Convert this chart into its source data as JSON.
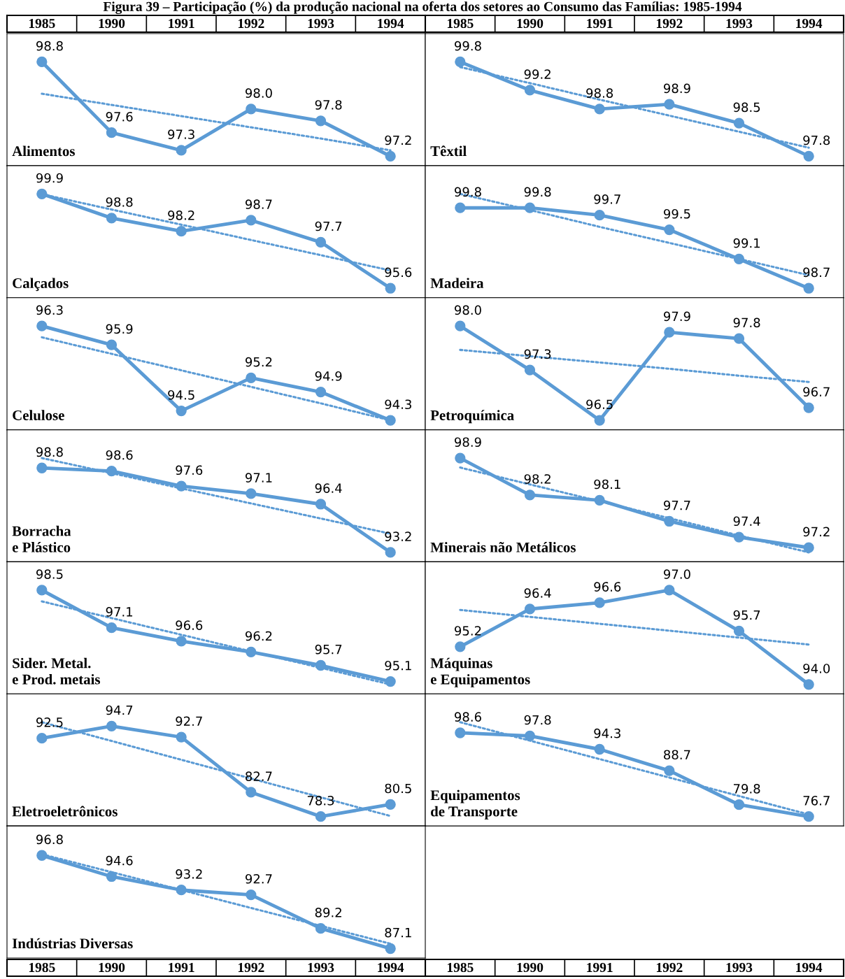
{
  "chart_data": [
    {
      "type": "line",
      "title": "Alimentos",
      "annotations": [
        "Figura 39 – Participação (%) da produção nacional na oferta dos setores ao Consumo das Famílias: 1985-1994"
      ],
      "categories": [
        "1985",
        "1990",
        "1991",
        "1992",
        "1993",
        "1994"
      ],
      "tick_labels": "x",
      "marker": "circle",
      "series": [
        {
          "color": "#5b9bd5",
          "values": [
            98.8,
            97.6,
            97.3,
            98.0,
            97.8,
            97.2
          ],
          "value_labels": [
            "98.8",
            "97.6",
            "97.3",
            "98.0",
            "97.8",
            "97.2"
          ]
        },
        {
          "type": "line",
          "color": "#5b9bd5",
          "line_style": "dotted",
          "marker": "none",
          "values": [
            98.26,
            98.07,
            97.88,
            97.69,
            97.5,
            97.3
          ]
        }
      ]
    },
    {
      "type": "line",
      "title": "Têxtil",
      "categories": [
        "1985",
        "1990",
        "1991",
        "1992",
        "1993",
        "1994"
      ],
      "tick_labels": "x",
      "marker": "circle",
      "series": [
        {
          "color": "#5b9bd5",
          "values": [
            99.8,
            99.2,
            98.8,
            98.9,
            98.5,
            97.8
          ],
          "value_labels": [
            "99.8",
            "99.2",
            "98.8",
            "98.9",
            "98.5",
            "97.8"
          ]
        },
        {
          "type": "line",
          "color": "#5b9bd5",
          "line_style": "dotted",
          "marker": "none",
          "values": [
            99.69,
            99.35,
            99.0,
            98.66,
            98.32,
            97.98
          ]
        }
      ]
    },
    {
      "type": "line",
      "title": "Calçados",
      "categories": [
        "1985",
        "1990",
        "1991",
        "1992",
        "1993",
        "1994"
      ],
      "tick_labels": false,
      "marker": "circle",
      "series": [
        {
          "color": "#5b9bd5",
          "values": [
            99.9,
            98.8,
            98.2,
            98.7,
            97.7,
            95.6
          ],
          "value_labels": [
            "99.9",
            "98.8",
            "98.2",
            "98.7",
            "97.7",
            "95.6"
          ]
        },
        {
          "type": "line",
          "color": "#5b9bd5",
          "line_style": "dotted",
          "marker": "none",
          "values": [
            99.89,
            99.19,
            98.5,
            97.8,
            97.11,
            96.41
          ]
        }
      ]
    },
    {
      "type": "line",
      "title": "Madeira",
      "categories": [
        "1985",
        "1990",
        "1991",
        "1992",
        "1993",
        "1994"
      ],
      "tick_labels": false,
      "marker": "circle",
      "series": [
        {
          "color": "#5b9bd5",
          "values": [
            99.8,
            99.8,
            99.7,
            99.5,
            99.1,
            98.7
          ],
          "value_labels": [
            "99.8",
            "99.8",
            "99.7",
            "99.5",
            "99.1",
            "98.7"
          ]
        },
        {
          "type": "line",
          "color": "#5b9bd5",
          "line_style": "dotted",
          "marker": "none",
          "values": [
            99.99,
            99.77,
            99.54,
            99.32,
            99.1,
            98.88
          ]
        }
      ]
    },
    {
      "type": "line",
      "title": "Celulose",
      "categories": [
        "1985",
        "1990",
        "1991",
        "1992",
        "1993",
        "1994"
      ],
      "tick_labels": false,
      "marker": "circle",
      "series": [
        {
          "color": "#5b9bd5",
          "values": [
            96.3,
            95.9,
            94.5,
            95.2,
            94.9,
            94.3
          ],
          "value_labels": [
            "96.3",
            "95.9",
            "94.5",
            "95.2",
            "94.9",
            "94.3"
          ]
        },
        {
          "type": "line",
          "color": "#5b9bd5",
          "line_style": "dotted",
          "marker": "none",
          "values": [
            96.06,
            95.71,
            95.36,
            95.01,
            94.66,
            94.3
          ]
        }
      ]
    },
    {
      "type": "line",
      "title": "Petroquímica",
      "categories": [
        "1985",
        "1990",
        "1991",
        "1992",
        "1993",
        "1994"
      ],
      "tick_labels": false,
      "marker": "circle",
      "series": [
        {
          "color": "#5b9bd5",
          "values": [
            98.0,
            97.3,
            96.5,
            97.9,
            97.8,
            96.7
          ],
          "value_labels": [
            "98.0",
            "97.3",
            "96.5",
            "97.9",
            "97.8",
            "96.7"
          ]
        },
        {
          "type": "line",
          "color": "#5b9bd5",
          "line_style": "dotted",
          "marker": "none",
          "values": [
            97.62,
            97.52,
            97.42,
            97.32,
            97.21,
            97.11
          ]
        }
      ]
    },
    {
      "type": "line",
      "title": "Borracha\ne Plástico",
      "categories": [
        "1985",
        "1990",
        "1991",
        "1992",
        "1993",
        "1994"
      ],
      "tick_labels": false,
      "marker": "circle",
      "series": [
        {
          "color": "#5b9bd5",
          "values": [
            98.8,
            98.6,
            97.6,
            97.1,
            96.4,
            93.2
          ],
          "value_labels": [
            "98.8",
            "98.6",
            "97.6",
            "97.1",
            "96.4",
            "93.2"
          ]
        },
        {
          "type": "line",
          "color": "#5b9bd5",
          "line_style": "dotted",
          "marker": "none",
          "values": [
            99.46,
            98.46,
            97.45,
            96.45,
            95.45,
            94.44
          ]
        }
      ]
    },
    {
      "type": "line",
      "title": "Minerais não Metálicos",
      "categories": [
        "1985",
        "1990",
        "1991",
        "1992",
        "1993",
        "1994"
      ],
      "tick_labels": false,
      "marker": "circle",
      "series": [
        {
          "color": "#5b9bd5",
          "values": [
            98.9,
            98.2,
            98.1,
            97.7,
            97.4,
            97.2
          ],
          "value_labels": [
            "98.9",
            "98.2",
            "98.1",
            "97.7",
            "97.4",
            "97.2"
          ]
        },
        {
          "type": "line",
          "color": "#5b9bd5",
          "line_style": "dotted",
          "marker": "none",
          "values": [
            98.72,
            98.4,
            98.08,
            97.76,
            97.43,
            97.11
          ]
        }
      ]
    },
    {
      "type": "line",
      "title": "Sider. Metal.\ne Prod. metais",
      "categories": [
        "1985",
        "1990",
        "1991",
        "1992",
        "1993",
        "1994"
      ],
      "tick_labels": false,
      "marker": "circle",
      "series": [
        {
          "color": "#5b9bd5",
          "values": [
            98.5,
            97.1,
            96.6,
            96.2,
            95.7,
            95.1
          ],
          "value_labels": [
            "98.5",
            "97.1",
            "96.6",
            "96.2",
            "95.7",
            "95.1"
          ]
        },
        {
          "type": "line",
          "color": "#5b9bd5",
          "line_style": "dotted",
          "marker": "none",
          "values": [
            98.08,
            97.46,
            96.84,
            96.22,
            95.61,
            94.99
          ]
        }
      ]
    },
    {
      "type": "line",
      "title": "Máquinas\ne Equipamentos",
      "categories": [
        "1985",
        "1990",
        "1991",
        "1992",
        "1993",
        "1994"
      ],
      "tick_labels": false,
      "marker": "circle",
      "series": [
        {
          "color": "#5b9bd5",
          "values": [
            95.2,
            96.4,
            96.6,
            97.0,
            95.7,
            94.0
          ],
          "value_labels": [
            "95.2",
            "96.4",
            "96.6",
            "97.0",
            "95.7",
            "94.0"
          ]
        },
        {
          "type": "line",
          "color": "#5b9bd5",
          "line_style": "dotted",
          "marker": "none",
          "values": [
            96.37,
            96.15,
            95.93,
            95.71,
            95.49,
            95.27
          ]
        }
      ]
    },
    {
      "type": "line",
      "title": "Eletroeletrônicos",
      "categories": [
        "1985",
        "1990",
        "1991",
        "1992",
        "1993",
        "1994"
      ],
      "tick_labels": false,
      "marker": "circle",
      "series": [
        {
          "color": "#5b9bd5",
          "values": [
            92.5,
            94.7,
            92.7,
            82.7,
            78.3,
            80.5
          ],
          "value_labels": [
            "92.5",
            "94.7",
            "92.7",
            "82.7",
            "78.3",
            "80.5"
          ]
        },
        {
          "type": "line",
          "color": "#5b9bd5",
          "line_style": "dotted",
          "marker": "none",
          "values": [
            95.41,
            92.01,
            88.6,
            85.2,
            81.79,
            78.39
          ]
        }
      ]
    },
    {
      "type": "line",
      "title": "Equipamentos\nde Transporte",
      "categories": [
        "1985",
        "1990",
        "1991",
        "1992",
        "1993",
        "1994"
      ],
      "tick_labels": "x",
      "marker": "circle",
      "series": [
        {
          "color": "#5b9bd5",
          "values": [
            98.6,
            97.8,
            94.3,
            88.7,
            79.8,
            76.7
          ],
          "value_labels": [
            "98.6",
            "97.8",
            "94.3",
            "88.7",
            "79.8",
            "76.7"
          ]
        },
        {
          "type": "line",
          "color": "#5b9bd5",
          "line_style": "dotted",
          "marker": "none",
          "values": [
            101.39,
            96.56,
            91.73,
            86.9,
            82.07,
            77.24
          ]
        }
      ]
    },
    {
      "type": "line",
      "title": "Indústrias Diversas",
      "categories": [
        "1985",
        "1990",
        "1991",
        "1992",
        "1993",
        "1994"
      ],
      "tick_labels": "x",
      "marker": "circle",
      "series": [
        {
          "color": "#5b9bd5",
          "values": [
            96.8,
            94.6,
            93.2,
            92.7,
            89.2,
            87.1
          ],
          "value_labels": [
            "96.8",
            "94.6",
            "93.2",
            "92.7",
            "89.2",
            "87.1"
          ]
        },
        {
          "type": "line",
          "color": "#5b9bd5",
          "line_style": "dotted",
          "marker": "none",
          "values": [
            96.92,
            95.06,
            93.2,
            91.33,
            89.47,
            87.61
          ]
        }
      ]
    }
  ]
}
